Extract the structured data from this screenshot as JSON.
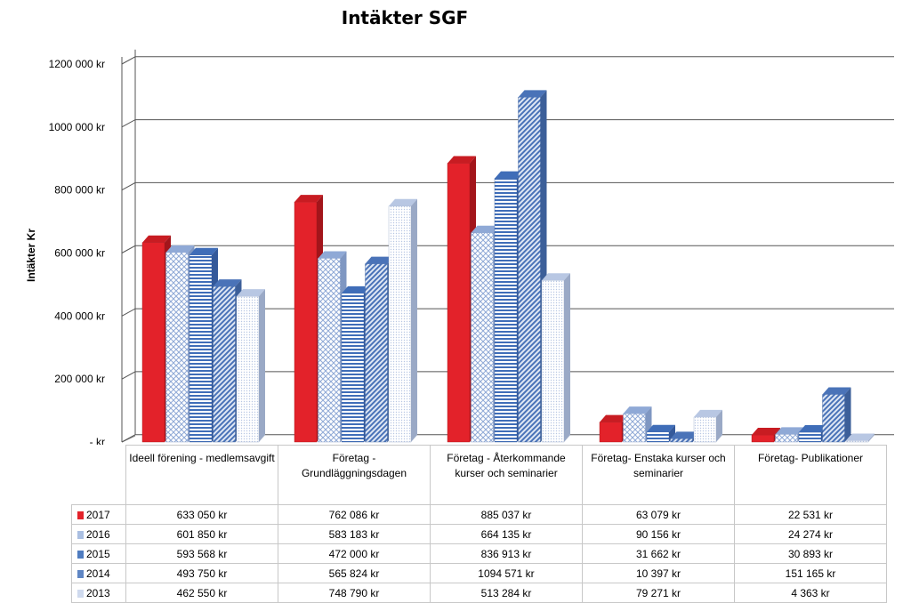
{
  "chart_data": {
    "type": "bar",
    "title": "Intäkter SGF",
    "ylabel": "Intäkter Kr",
    "xlabel": "",
    "ylim": [
      0,
      1200000
    ],
    "yticks": [
      "1200 000 kr",
      "1000 000 kr",
      "800 000 kr",
      "600 000 kr",
      "400 000 kr",
      "200 000 kr",
      "-   kr"
    ],
    "grid": true,
    "legend": "table-left",
    "categories": [
      "Ideell förening - medlemsavgift",
      "Företag  - Grundläggningsdagen",
      "Företag - Återkommande kurser och seminarier",
      "Företag- Enstaka kurser och seminarier",
      "Företag- Publikationer"
    ],
    "series": [
      {
        "name": "2017",
        "values": [
          633050,
          762086,
          885037,
          63079,
          22531
        ],
        "labels": [
          "633 050 kr",
          "762 086 kr",
          "885 037 kr",
          "63 079 kr",
          "22 531 kr"
        ],
        "color": "#e3222a"
      },
      {
        "name": "2016",
        "values": [
          601850,
          583183,
          664135,
          90156,
          24274
        ],
        "labels": [
          "601 850 kr",
          "583 183 kr",
          "664 135 kr",
          "90 156 kr",
          "24 274 kr"
        ],
        "color": "#aabfe2"
      },
      {
        "name": "2015",
        "values": [
          593568,
          472000,
          836913,
          31662,
          30893
        ],
        "labels": [
          "593 568 kr",
          "472 000 kr",
          "836 913 kr",
          "31 662 kr",
          "30 893 kr"
        ],
        "color": "#4f7cc0"
      },
      {
        "name": "2014",
        "values": [
          493750,
          565824,
          1094571,
          10397,
          151165
        ],
        "labels": [
          "493 750 kr",
          "565 824 kr",
          "1094 571 kr",
          "10 397 kr",
          "151 165 kr"
        ],
        "color": "#5f86c4"
      },
      {
        "name": "2013",
        "values": [
          462550,
          748790,
          513284,
          79271,
          4363
        ],
        "labels": [
          "462 550 kr",
          "748 790 kr",
          "513 284 kr",
          "79 271 kr",
          "4 363 kr"
        ],
        "color": "#cfdaee"
      }
    ]
  }
}
